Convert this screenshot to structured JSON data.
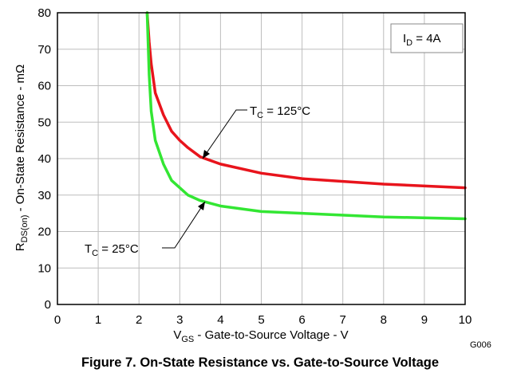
{
  "chart_data": {
    "type": "line",
    "title": "Figure 7. On-State Resistance vs. Gate-to-Source Voltage",
    "figure_code": "G006",
    "xlabel": {
      "main": "V",
      "sub": "GS",
      "rest": " - Gate-to-Source Voltage - V"
    },
    "ylabel": {
      "main": "R",
      "sub": "DS(on)",
      "rest": " - On-State Resistance - mΩ"
    },
    "xlim": [
      0,
      10
    ],
    "ylim": [
      0,
      80
    ],
    "xticks": [
      "0",
      "1",
      "2",
      "3",
      "4",
      "5",
      "6",
      "7",
      "8",
      "9",
      "10"
    ],
    "yticks": [
      "0",
      "10",
      "20",
      "30",
      "40",
      "50",
      "60",
      "70",
      "80"
    ],
    "grid": true,
    "condition": {
      "main": "I",
      "sub": "D",
      "rest": " = 4A"
    },
    "series": [
      {
        "name": "T_C = 125°C",
        "label": {
          "main": "T",
          "sub": "C",
          "rest": " = 125°C"
        },
        "color": "#e8141c",
        "x": [
          2.2,
          2.25,
          2.3,
          2.4,
          2.6,
          2.8,
          3.0,
          3.2,
          3.5,
          4.0,
          5.0,
          6.0,
          8.0,
          10.0
        ],
        "y": [
          80,
          72,
          66,
          58,
          52,
          47.5,
          45,
          43,
          40.5,
          38.5,
          36,
          34.5,
          33,
          32
        ]
      },
      {
        "name": "T_C = 25°C",
        "label": {
          "main": "T",
          "sub": "C",
          "rest": " = 25°C"
        },
        "color": "#33e633",
        "x": [
          2.2,
          2.25,
          2.3,
          2.4,
          2.6,
          2.8,
          3.0,
          3.2,
          3.5,
          4.0,
          5.0,
          6.0,
          8.0,
          10.0
        ],
        "y": [
          80,
          63,
          53,
          45,
          38.5,
          34,
          32,
          30,
          28.5,
          27,
          25.5,
          25,
          24,
          23.5
        ]
      }
    ]
  }
}
